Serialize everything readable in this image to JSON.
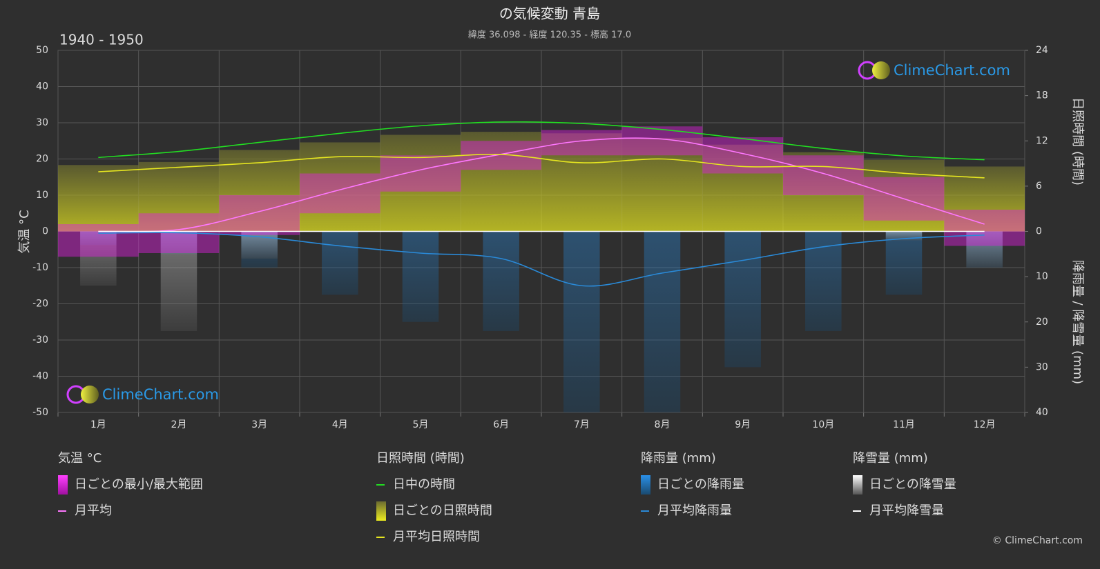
{
  "chart_data": {
    "type": "climate",
    "title": "の気候変動 青島",
    "subtitle": "緯度 36.098 - 経度 120.35 - 標高 17.0",
    "period": "1940 - 1950",
    "watermark": "ClimeChart.com",
    "copyright": "© ClimeChart.com",
    "categories": [
      "1月",
      "2月",
      "3月",
      "4月",
      "5月",
      "6月",
      "7月",
      "8月",
      "9月",
      "10月",
      "11月",
      "12月"
    ],
    "ylabel": "気温 °C",
    "ylim": [
      -50,
      50
    ],
    "yticks": [
      50,
      40,
      30,
      20,
      10,
      0,
      -10,
      -20,
      -30,
      -40,
      -50
    ],
    "y2label": "日照時間 (時間)",
    "y2lim": [
      0,
      24
    ],
    "y2ticks": [
      24,
      18,
      12,
      6,
      0
    ],
    "y3label": "降雨量 / 降雪量 (mm)",
    "y3lim": [
      0,
      40
    ],
    "y3ticks": [
      10,
      20,
      30,
      40
    ],
    "grid": true,
    "groups": [
      {
        "title": "気温 °C",
        "series": [
          {
            "name": "日ごとの最小/最大範囲",
            "color": "#e020e0",
            "kind": "range",
            "axis": "y",
            "min": [
              -7,
              -6,
              -1,
              5,
              11,
              17,
              21,
              21,
              16,
              10,
              3,
              -4
            ],
            "max": [
              2,
              5,
              10,
              16,
              21,
              25,
              28,
              29,
              26,
              21,
              15,
              6
            ]
          },
          {
            "name": "月平均",
            "color": "#ff77ff",
            "kind": "line",
            "axis": "y",
            "values": [
              0,
              0.5,
              5.5,
              11.5,
              17,
              21.3,
              25,
              25.5,
              21.5,
              16,
              9,
              2
            ]
          }
        ]
      },
      {
        "title": "日照時間 (時間)",
        "series": [
          {
            "name": "日中の時間",
            "color": "#22dd22",
            "kind": "line",
            "axis": "y2",
            "values": [
              9.8,
              10.6,
              11.8,
              13.0,
              14.0,
              14.5,
              14.3,
              13.5,
              12.3,
              11.0,
              10.0,
              9.5
            ]
          },
          {
            "name": "日ごとの日照時間",
            "color": "#9a9a32",
            "kind": "bars",
            "axis": "y2",
            "values": [
              8.8,
              9.2,
              10.8,
              11.8,
              12.8,
              13.2,
              13.0,
              12.4,
              11.5,
              10.5,
              9.5,
              8.6
            ]
          },
          {
            "name": "月平均日照時間",
            "color": "#e6e620",
            "kind": "line",
            "axis": "y2",
            "values": [
              7.9,
              8.5,
              9.1,
              9.9,
              9.8,
              10.2,
              9.1,
              9.6,
              8.6,
              8.6,
              7.7,
              7.1
            ]
          }
        ]
      },
      {
        "title": "降雨量 (mm)",
        "series": [
          {
            "name": "日ごとの降雨量",
            "color": "#2080d0",
            "kind": "bars",
            "axis": "y3",
            "values": [
              3,
              5,
              8,
              14,
              20,
              22,
              40,
              40,
              30,
              22,
              14,
              8
            ]
          },
          {
            "name": "月平均降雨量",
            "color": "#2a8ad8",
            "kind": "line",
            "axis": "y3",
            "values": [
              0.4,
              0.3,
              1.2,
              3.2,
              4.8,
              6.0,
              12.0,
              9.2,
              6.4,
              3.4,
              1.6,
              0.8
            ]
          }
        ]
      },
      {
        "title": "降雪量 (mm)",
        "series": [
          {
            "name": "日ごとの降雪量",
            "color": "#bbbbbb",
            "kind": "bars",
            "axis": "y3",
            "values": [
              12,
              22,
              6,
              0,
              0,
              0,
              0,
              0,
              0,
              0,
              2,
              8
            ]
          },
          {
            "name": "月平均降雪量",
            "color": "#ffffff",
            "kind": "line",
            "axis": "y3",
            "values": [
              0,
              0,
              0,
              0,
              0,
              0,
              0,
              0,
              0,
              0,
              0,
              0
            ]
          }
        ]
      }
    ]
  }
}
